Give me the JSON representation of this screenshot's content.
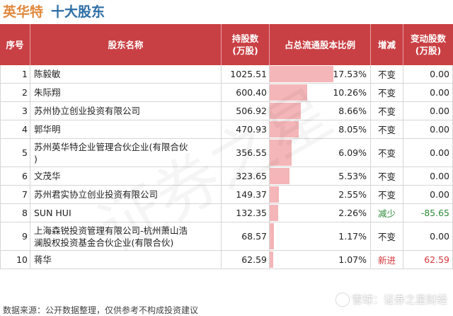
{
  "title": {
    "company": "英华特",
    "subtitle": "十大股东"
  },
  "headers": {
    "idx": "序号",
    "name": "股东名称",
    "shares": "持股数\n(万股)",
    "ratio": "占总流通股本比例",
    "change": "增减",
    "delta": "变动股数\n(万股)"
  },
  "rows": [
    {
      "idx": "1",
      "name": "陈毅敏",
      "shares": "1025.51",
      "pct": "17.53%",
      "pct_value": 17.53,
      "change": "不变",
      "delta": "0.00",
      "tone": "none"
    },
    {
      "idx": "2",
      "name": "朱际翔",
      "shares": "600.40",
      "pct": "10.26%",
      "pct_value": 10.26,
      "change": "不变",
      "delta": "0.00",
      "tone": "none"
    },
    {
      "idx": "3",
      "name": "苏州协立创业投资有限公司",
      "shares": "506.92",
      "pct": "8.66%",
      "pct_value": 8.66,
      "change": "不变",
      "delta": "0.00",
      "tone": "none"
    },
    {
      "idx": "4",
      "name": "郭华明",
      "shares": "470.93",
      "pct": "8.05%",
      "pct_value": 8.05,
      "change": "不变",
      "delta": "0.00",
      "tone": "none"
    },
    {
      "idx": "5",
      "name": "苏州英华特企业管理合伙企业(有限合伙\n)",
      "shares": "356.55",
      "pct": "6.09%",
      "pct_value": 6.09,
      "change": "不变",
      "delta": "0.00",
      "tone": "none"
    },
    {
      "idx": "6",
      "name": "文茂华",
      "shares": "323.65",
      "pct": "5.53%",
      "pct_value": 5.53,
      "change": "不变",
      "delta": "0.00",
      "tone": "none"
    },
    {
      "idx": "7",
      "name": "苏州君实协立创业投资有限公司",
      "shares": "149.37",
      "pct": "2.55%",
      "pct_value": 2.55,
      "change": "不变",
      "delta": "0.00",
      "tone": "none"
    },
    {
      "idx": "8",
      "name": "SUN HUI",
      "shares": "132.35",
      "pct": "2.26%",
      "pct_value": 2.26,
      "change": "减少",
      "delta": "-85.65",
      "tone": "neg"
    },
    {
      "idx": "9",
      "name": "上海森锐投资管理有限公司-杭州萧山浩\n澜股权投资基金合伙企业(有限合伙)",
      "shares": "68.57",
      "pct": "1.17%",
      "pct_value": 1.17,
      "change": "不变",
      "delta": "0.00",
      "tone": "none"
    },
    {
      "idx": "10",
      "name": "蒋华",
      "shares": "62.59",
      "pct": "1.07%",
      "pct_value": 1.07,
      "change": "新进",
      "delta": "62.59",
      "tone": "pos"
    }
  ],
  "bar_scale_max_pct": 17.53,
  "footer": "数据来源：公开数据整理，仅供参考不构成投资建议",
  "brand": "雪球：证券之星财经",
  "watermark": "证券之星"
}
